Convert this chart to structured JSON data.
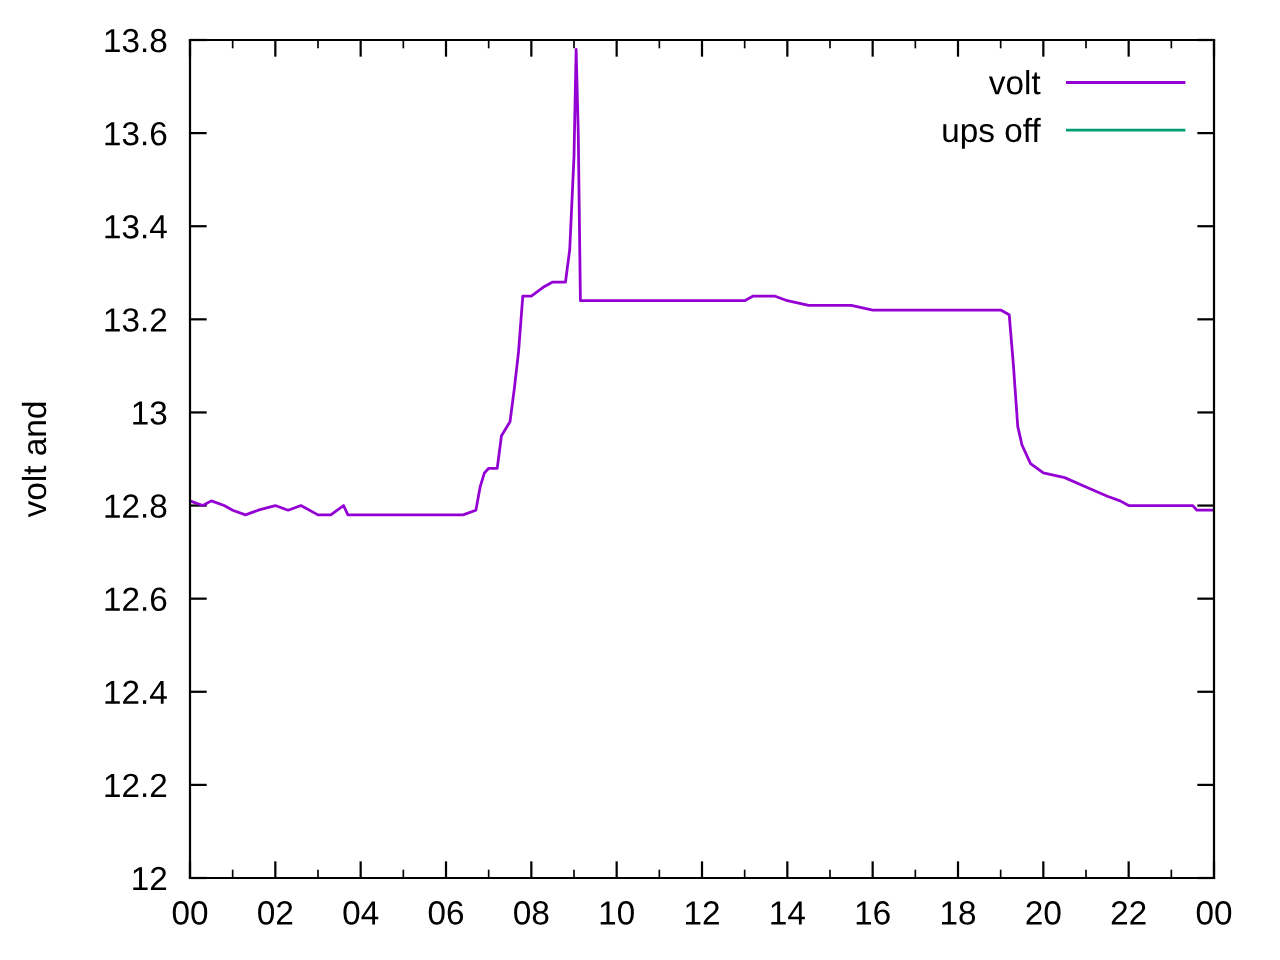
{
  "chart_data": {
    "type": "line",
    "ylabel": "volt and",
    "xlim": [
      0,
      24
    ],
    "ylim": [
      12,
      13.8
    ],
    "xticks": [
      {
        "value": 0,
        "label": "00"
      },
      {
        "value": 2,
        "label": "02"
      },
      {
        "value": 4,
        "label": "04"
      },
      {
        "value": 6,
        "label": "06"
      },
      {
        "value": 8,
        "label": "08"
      },
      {
        "value": 10,
        "label": "10"
      },
      {
        "value": 12,
        "label": "12"
      },
      {
        "value": 14,
        "label": "14"
      },
      {
        "value": 16,
        "label": "16"
      },
      {
        "value": 18,
        "label": "18"
      },
      {
        "value": 20,
        "label": "20"
      },
      {
        "value": 22,
        "label": "22"
      },
      {
        "value": 24,
        "label": "00"
      }
    ],
    "yticks": [
      12,
      12.2,
      12.4,
      12.6,
      12.8,
      13,
      13.2,
      13.4,
      13.6,
      13.8
    ],
    "grid": false,
    "legend": "top right",
    "marker": "none",
    "line_style": "solid",
    "series": [
      {
        "name": "volt",
        "color": "#9400d3",
        "x": [
          0,
          0.3,
          0.5,
          0.8,
          1.0,
          1.3,
          1.6,
          2.0,
          2.3,
          2.6,
          3.0,
          3.3,
          3.6,
          3.7,
          5.5,
          6.4,
          6.7,
          6.8,
          6.9,
          7.0,
          7.2,
          7.3,
          7.5,
          7.6,
          7.7,
          7.8,
          8.0,
          8.3,
          8.5,
          8.8,
          8.9,
          9.0,
          9.05,
          9.1,
          9.15,
          12.0,
          13.0,
          13.2,
          13.7,
          14.0,
          14.5,
          15.0,
          15.5,
          16.0,
          17.0,
          18.0,
          19.0,
          19.2,
          19.3,
          19.4,
          19.5,
          19.7,
          20.0,
          20.5,
          21.0,
          21.5,
          21.8,
          22.0,
          23.0,
          23.5,
          23.6,
          24.0
        ],
        "values": [
          12.81,
          12.8,
          12.81,
          12.8,
          12.79,
          12.78,
          12.79,
          12.8,
          12.79,
          12.8,
          12.78,
          12.78,
          12.8,
          12.78,
          12.78,
          12.78,
          12.79,
          12.84,
          12.87,
          12.88,
          12.88,
          12.95,
          12.98,
          13.05,
          13.13,
          13.25,
          13.25,
          13.27,
          13.28,
          13.28,
          13.35,
          13.55,
          13.78,
          13.6,
          13.24,
          13.24,
          13.24,
          13.25,
          13.25,
          13.24,
          13.23,
          13.23,
          13.23,
          13.22,
          13.22,
          13.22,
          13.22,
          13.21,
          13.1,
          12.97,
          12.93,
          12.89,
          12.87,
          12.86,
          12.84,
          12.82,
          12.81,
          12.8,
          12.8,
          12.8,
          12.79,
          12.79
        ]
      },
      {
        "name": "ups off",
        "color": "#009e73"
      }
    ]
  }
}
